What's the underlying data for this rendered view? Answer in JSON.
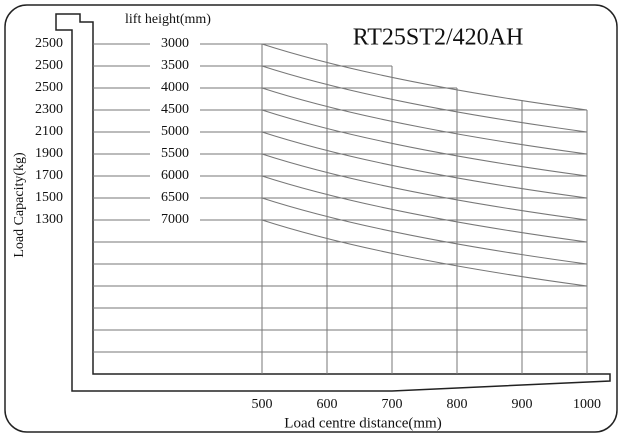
{
  "header": {
    "title": "RT25ST2/420AH",
    "column_label": "lift height(mm)"
  },
  "y_axis_label": "Load Capacity(kg)",
  "rows": [
    {
      "capacity": 2500,
      "lift_height": 3000
    },
    {
      "capacity": 2500,
      "lift_height": 3500
    },
    {
      "capacity": 2500,
      "lift_height": 4000
    },
    {
      "capacity": 2300,
      "lift_height": 4500
    },
    {
      "capacity": 2100,
      "lift_height": 5000
    },
    {
      "capacity": 1900,
      "lift_height": 5500
    },
    {
      "capacity": 1700,
      "lift_height": 6000
    },
    {
      "capacity": 1500,
      "lift_height": 6500
    },
    {
      "capacity": 1300,
      "lift_height": 7000
    }
  ],
  "x_axis": {
    "label": "Load centre distance(mm)",
    "ticks": [
      500,
      600,
      700,
      800,
      900,
      1000
    ]
  }
}
